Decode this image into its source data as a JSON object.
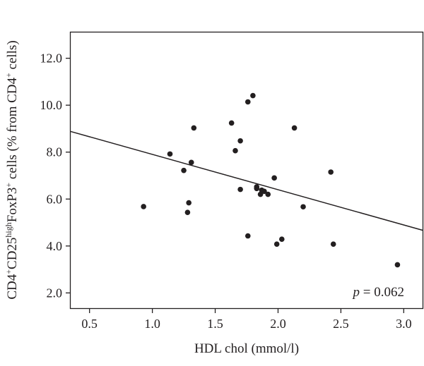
{
  "chart_data": {
    "type": "scatter",
    "title": "",
    "xlabel": "HDL chol (mmol/l)",
    "ylabel": {
      "p1": "CD4",
      "s1": "+",
      "p2": "CD25",
      "s2": "high",
      "p3": "FoxP3",
      "s3": "+",
      "p4": " cells (% from CD4",
      "s4": "+",
      "p5": " cells)"
    },
    "xlim": [
      0.35,
      3.15
    ],
    "ylim": [
      1.35,
      13.1
    ],
    "x_ticks": [
      "0.5",
      "1.0",
      "1.5",
      "2.0",
      "2.5",
      "3.0"
    ],
    "y_ticks": [
      "2.0",
      "4.0",
      "6.0",
      "8.0",
      "10.0",
      "12.0"
    ],
    "grid": false,
    "points": [
      {
        "x": 0.93,
        "y": 5.68
      },
      {
        "x": 1.14,
        "y": 7.92
      },
      {
        "x": 1.25,
        "y": 7.22
      },
      {
        "x": 1.28,
        "y": 5.43
      },
      {
        "x": 1.29,
        "y": 5.84
      },
      {
        "x": 1.31,
        "y": 7.56
      },
      {
        "x": 1.33,
        "y": 9.03
      },
      {
        "x": 1.63,
        "y": 9.24
      },
      {
        "x": 1.66,
        "y": 8.06
      },
      {
        "x": 1.7,
        "y": 8.48
      },
      {
        "x": 1.7,
        "y": 6.41
      },
      {
        "x": 1.76,
        "y": 10.14
      },
      {
        "x": 1.76,
        "y": 4.43
      },
      {
        "x": 1.8,
        "y": 10.41
      },
      {
        "x": 1.83,
        "y": 6.52
      },
      {
        "x": 1.83,
        "y": 6.45
      },
      {
        "x": 1.86,
        "y": 6.2
      },
      {
        "x": 1.87,
        "y": 6.38
      },
      {
        "x": 1.89,
        "y": 6.33
      },
      {
        "x": 1.92,
        "y": 6.2
      },
      {
        "x": 1.97,
        "y": 6.9
      },
      {
        "x": 1.99,
        "y": 4.08
      },
      {
        "x": 2.03,
        "y": 4.29
      },
      {
        "x": 2.13,
        "y": 9.03
      },
      {
        "x": 2.2,
        "y": 5.67
      },
      {
        "x": 2.42,
        "y": 7.15
      },
      {
        "x": 2.44,
        "y": 4.08
      },
      {
        "x": 2.95,
        "y": 3.2
      }
    ],
    "fit_line": {
      "x": [
        0.35,
        3.15
      ],
      "y": [
        8.88,
        4.67
      ]
    },
    "annotation": {
      "italic": "p",
      "text": " = 0.062"
    }
  }
}
